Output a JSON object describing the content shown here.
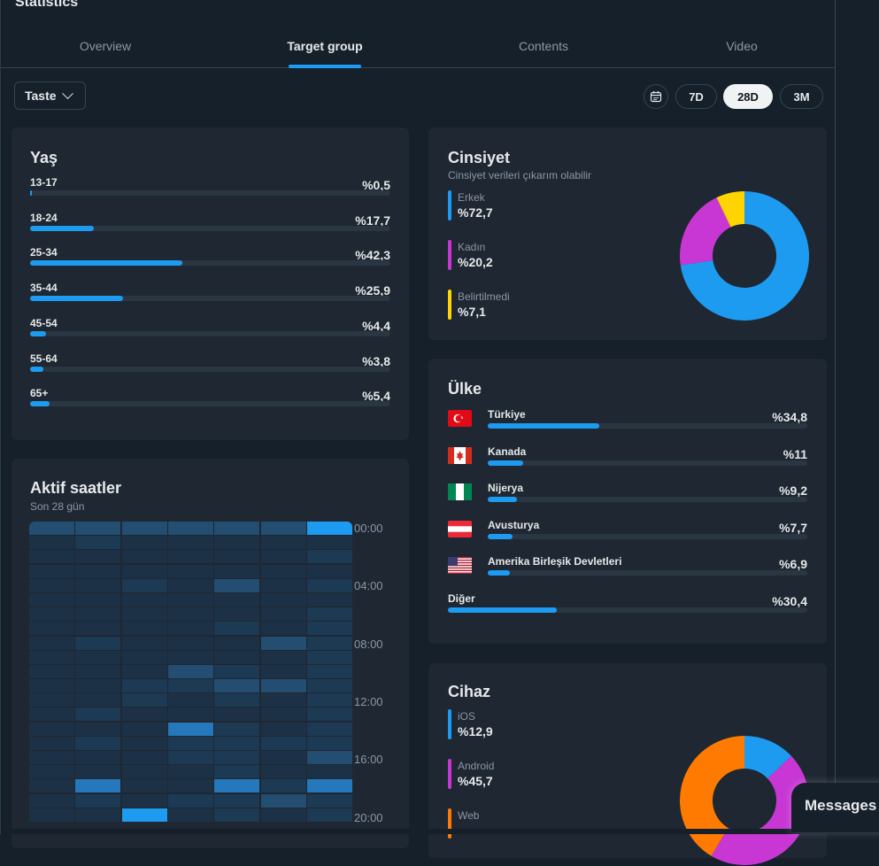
{
  "header": {
    "title": "Statistics"
  },
  "tabs": [
    {
      "label": "Overview"
    },
    {
      "label": "Target group"
    },
    {
      "label": "Contents"
    },
    {
      "label": "Video"
    }
  ],
  "active_tab": "Target group",
  "filter": {
    "selected": "Taste"
  },
  "ranges": [
    {
      "label": "7D"
    },
    {
      "label": "28D"
    },
    {
      "label": "3M"
    }
  ],
  "active_range": "28D",
  "age": {
    "title": "Yaş",
    "items": [
      {
        "label": "13-17",
        "value": "%0,5",
        "pct": 0.5
      },
      {
        "label": "18-24",
        "value": "%17,7",
        "pct": 17.7
      },
      {
        "label": "25-34",
        "value": "%42,3",
        "pct": 42.3
      },
      {
        "label": "35-44",
        "value": "%25,9",
        "pct": 25.9
      },
      {
        "label": "45-54",
        "value": "%4,4",
        "pct": 4.4
      },
      {
        "label": "55-64",
        "value": "%3,8",
        "pct": 3.8
      },
      {
        "label": "65+",
        "value": "%5,4",
        "pct": 5.4
      }
    ]
  },
  "gender": {
    "title": "Cinsiyet",
    "subtitle": "Cinsiyet verileri çıkarım olabilir",
    "items": [
      {
        "label": "Erkek",
        "value": "%72,7",
        "pct": 72.7,
        "color": "#1d9bf0"
      },
      {
        "label": "Kadın",
        "value": "%20,2",
        "pct": 20.2,
        "color": "#c837d3"
      },
      {
        "label": "Belirtilmedi",
        "value": "%7,1",
        "pct": 7.1,
        "color": "#ffd400"
      }
    ]
  },
  "country": {
    "title": "Ülke",
    "items": [
      {
        "label": "Türkiye",
        "value": "%34,8",
        "pct": 34.8,
        "flag": "turkey-flag-icon"
      },
      {
        "label": "Kanada",
        "value": "%11",
        "pct": 11,
        "flag": "canada-flag-icon"
      },
      {
        "label": "Nijerya",
        "value": "%9,2",
        "pct": 9.2,
        "flag": "nigeria-flag-icon"
      },
      {
        "label": "Avusturya",
        "value": "%7,7",
        "pct": 7.7,
        "flag": "austria-flag-icon"
      },
      {
        "label": "Amerika Birleşik Devletleri",
        "value": "%6,9",
        "pct": 6.9,
        "flag": "usa-flag-icon"
      },
      {
        "label": "Diğer",
        "value": "%30,4",
        "pct": 30.4
      }
    ]
  },
  "active_hours": {
    "title": "Aktif saatler",
    "subtitle": "Son 28 gün",
    "hour_labels": [
      "00:00",
      "04:00",
      "08:00",
      "12:00",
      "16:00",
      "20:00"
    ],
    "levels": [
      [
        3,
        3,
        3,
        3,
        3,
        3,
        5
      ],
      [
        1,
        2,
        1,
        1,
        1,
        1,
        1
      ],
      [
        1,
        1,
        1,
        1,
        1,
        1,
        2
      ],
      [
        1,
        1,
        1,
        1,
        1,
        1,
        1
      ],
      [
        1,
        1,
        2,
        1,
        3,
        1,
        2
      ],
      [
        1,
        1,
        1,
        1,
        1,
        1,
        1
      ],
      [
        1,
        1,
        1,
        1,
        1,
        1,
        2
      ],
      [
        1,
        1,
        1,
        1,
        2,
        1,
        2
      ],
      [
        1,
        2,
        1,
        1,
        1,
        3,
        2
      ],
      [
        1,
        1,
        1,
        1,
        1,
        1,
        2
      ],
      [
        1,
        1,
        1,
        3,
        2,
        1,
        2
      ],
      [
        1,
        1,
        2,
        2,
        3,
        3,
        2
      ],
      [
        1,
        1,
        2,
        1,
        2,
        1,
        2
      ],
      [
        1,
        2,
        1,
        1,
        1,
        1,
        2
      ],
      [
        1,
        1,
        1,
        4,
        2,
        1,
        2
      ],
      [
        1,
        2,
        1,
        2,
        2,
        2,
        2
      ],
      [
        1,
        1,
        1,
        2,
        2,
        1,
        3
      ],
      [
        1,
        1,
        1,
        1,
        2,
        1,
        1
      ],
      [
        1,
        4,
        1,
        1,
        4,
        2,
        4
      ],
      [
        1,
        2,
        1,
        2,
        2,
        3,
        2
      ],
      [
        1,
        1,
        5,
        1,
        2,
        1,
        2
      ]
    ]
  },
  "device": {
    "title": "Cihaz",
    "items": [
      {
        "label": "iOS",
        "value": "%12,9",
        "pct": 12.9,
        "color": "#1d9bf0"
      },
      {
        "label": "Android",
        "value": "%45,7",
        "pct": 45.7,
        "color": "#c837d3"
      },
      {
        "label": "Web",
        "value": "",
        "pct": 41.4,
        "color": "#ff7a00"
      }
    ]
  },
  "messages": {
    "label": "Messages"
  }
}
